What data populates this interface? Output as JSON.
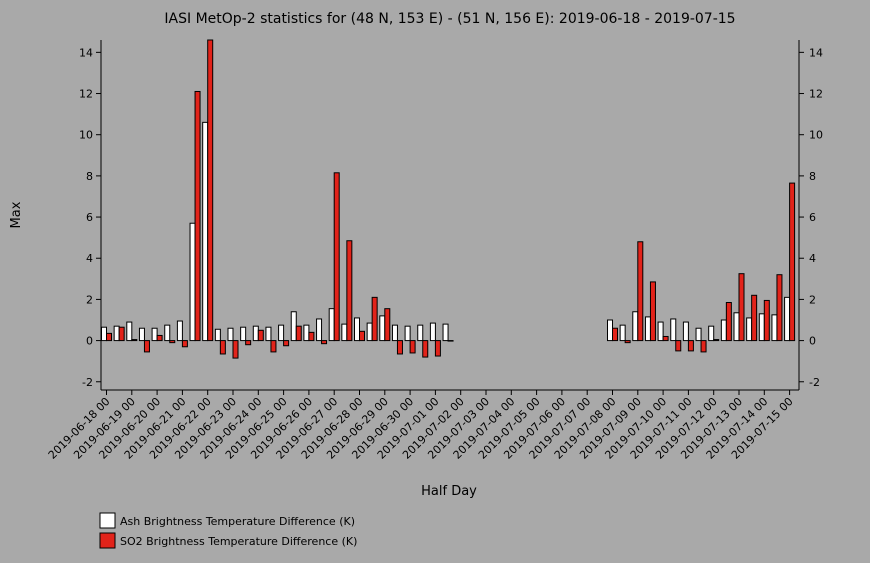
{
  "chart_data": {
    "type": "bar",
    "title": "IASI MetOp-2 statistics for (48 N, 153 E) - (51 N, 156 E): 2019-06-18 - 2019-07-15",
    "xlabel": "Half Day",
    "ylabel": "Max",
    "ylim": [
      -2.4,
      14.6
    ],
    "yticks": [
      -2,
      0,
      2,
      4,
      6,
      8,
      10,
      12,
      14
    ],
    "grid": false,
    "legend_position": "bottom-left",
    "tick_labels": [
      "2019-06-18 00",
      "2019-06-19 00",
      "2019-06-20 00",
      "2019-06-21 00",
      "2019-06-22 00",
      "2019-06-23 00",
      "2019-06-24 00",
      "2019-06-25 00",
      "2019-06-26 00",
      "2019-06-27 00",
      "2019-06-28 00",
      "2019-06-29 00",
      "2019-06-30 00",
      "2019-07-01 00",
      "2019-07-02 00",
      "2019-07-03 00",
      "2019-07-04 00",
      "2019-07-05 00",
      "2019-07-06 00",
      "2019-07-07 00",
      "2019-07-08 00",
      "2019-07-09 00",
      "2019-07-10 00",
      "2019-07-11 00",
      "2019-07-12 00",
      "2019-07-13 00",
      "2019-07-14 00",
      "2019-07-15 00"
    ],
    "categories": [
      "2019-06-18 00",
      "2019-06-18 12",
      "2019-06-19 00",
      "2019-06-19 12",
      "2019-06-20 00",
      "2019-06-20 12",
      "2019-06-21 00",
      "2019-06-21 12",
      "2019-06-22 00",
      "2019-06-22 12",
      "2019-06-23 00",
      "2019-06-23 12",
      "2019-06-24 00",
      "2019-06-24 12",
      "2019-06-25 00",
      "2019-06-25 12",
      "2019-06-26 00",
      "2019-06-26 12",
      "2019-06-27 00",
      "2019-06-27 12",
      "2019-06-28 00",
      "2019-06-28 12",
      "2019-06-29 00",
      "2019-06-29 12",
      "2019-06-30 00",
      "2019-06-30 12",
      "2019-07-01 00",
      "2019-07-01 12",
      "2019-07-02 00",
      "2019-07-02 12",
      "2019-07-03 00",
      "2019-07-03 12",
      "2019-07-04 00",
      "2019-07-04 12",
      "2019-07-05 00",
      "2019-07-05 12",
      "2019-07-06 00",
      "2019-07-06 12",
      "2019-07-07 00",
      "2019-07-07 12",
      "2019-07-08 00",
      "2019-07-08 12",
      "2019-07-09 00",
      "2019-07-09 12",
      "2019-07-10 00",
      "2019-07-10 12",
      "2019-07-11 00",
      "2019-07-11 12",
      "2019-07-12 00",
      "2019-07-12 12",
      "2019-07-13 00",
      "2019-07-13 12",
      "2019-07-14 00",
      "2019-07-14 12",
      "2019-07-15 00"
    ],
    "series": [
      {
        "name": "Ash Brightness Temperature Difference (K)",
        "color": "#ffffff",
        "values": [
          0.65,
          0.7,
          0.9,
          0.6,
          0.6,
          0.75,
          0.95,
          5.7,
          10.6,
          0.55,
          0.6,
          0.65,
          0.7,
          0.65,
          0.75,
          1.4,
          0.75,
          1.05,
          1.55,
          0.8,
          1.1,
          0.85,
          1.2,
          0.75,
          0.7,
          0.75,
          0.85,
          0.8,
          null,
          null,
          null,
          null,
          null,
          null,
          null,
          null,
          null,
          null,
          null,
          null,
          1.0,
          0.75,
          1.4,
          1.15,
          0.9,
          1.05,
          0.9,
          0.6,
          0.7,
          1.0,
          1.35,
          1.1,
          1.3,
          1.25,
          2.1
        ]
      },
      {
        "name": "SO2 Brightness Temperature Difference (K)",
        "color": "#e2231a",
        "values": [
          0.35,
          0.65,
          0.05,
          -0.55,
          0.25,
          -0.1,
          -0.3,
          12.1,
          14.6,
          -0.65,
          -0.85,
          -0.2,
          0.5,
          -0.55,
          -0.25,
          0.7,
          0.4,
          -0.15,
          8.15,
          4.85,
          0.45,
          2.1,
          1.55,
          -0.65,
          -0.6,
          -0.8,
          -0.75,
          0.0,
          null,
          null,
          null,
          null,
          null,
          null,
          null,
          null,
          null,
          null,
          null,
          null,
          0.6,
          -0.1,
          4.8,
          2.85,
          0.2,
          -0.5,
          -0.5,
          -0.55,
          0.05,
          1.85,
          3.25,
          2.2,
          1.95,
          3.2,
          7.65
        ]
      }
    ]
  }
}
